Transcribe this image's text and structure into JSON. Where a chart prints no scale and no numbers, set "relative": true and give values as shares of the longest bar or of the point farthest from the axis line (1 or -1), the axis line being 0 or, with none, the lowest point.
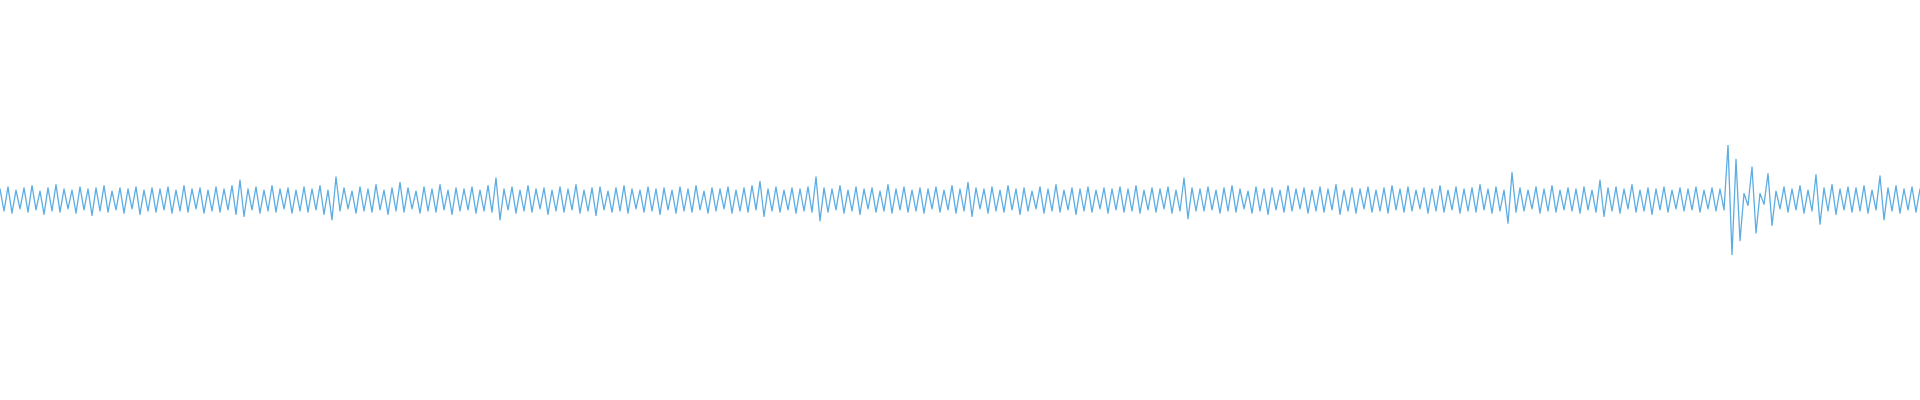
{
  "chart_data": {
    "type": "line",
    "relative": true,
    "color": "#5dade2",
    "marker": "none",
    "categories": [
      null,
      null,
      null,
      null,
      null,
      null,
      null,
      null,
      null,
      null,
      null,
      null,
      null,
      null,
      null,
      null,
      null,
      null,
      null,
      null,
      null,
      null,
      null,
      null,
      null,
      null,
      null,
      null,
      null,
      null,
      null,
      null,
      null,
      null,
      null,
      null,
      null,
      null,
      null,
      null,
      null,
      null,
      null,
      null,
      null,
      null,
      null,
      null,
      null,
      null,
      null,
      null,
      null,
      null,
      null,
      null,
      null,
      null,
      null,
      null,
      null,
      null,
      null,
      null,
      null,
      null,
      null,
      null,
      null,
      null,
      null,
      null,
      null,
      null,
      null,
      null,
      null,
      null,
      null,
      null,
      null,
      null,
      null,
      null,
      null,
      null,
      null,
      null,
      null,
      null,
      null,
      null,
      null,
      null,
      null,
      null,
      null,
      null,
      null,
      null,
      null,
      null,
      null,
      null,
      null,
      null,
      null,
      null,
      null,
      null,
      null,
      null,
      null,
      null,
      null,
      null,
      null,
      null,
      null,
      null,
      null,
      null,
      null,
      null,
      null,
      null,
      null,
      null,
      null,
      null,
      null,
      null,
      null,
      null,
      null,
      null,
      null,
      null,
      null,
      null,
      null,
      null,
      null,
      null,
      null,
      null,
      null,
      null,
      null,
      null,
      null,
      null,
      null,
      null,
      null,
      null,
      null,
      null,
      null,
      null,
      null,
      null,
      null,
      null,
      null,
      null,
      null,
      null,
      null,
      null,
      null,
      null,
      null,
      null,
      null,
      null,
      null,
      null,
      null,
      null,
      null,
      null,
      null,
      null,
      null,
      null,
      null,
      null,
      null,
      null,
      null,
      null,
      null,
      null,
      null,
      null,
      null,
      null,
      null,
      null,
      null,
      null,
      null,
      null,
      null,
      null,
      null,
      null,
      null,
      null,
      null,
      null,
      null,
      null,
      null,
      null,
      null,
      null,
      null,
      null,
      null,
      null,
      null,
      null,
      null,
      null,
      null,
      null,
      null,
      null,
      null,
      null,
      null,
      null,
      null,
      null,
      null,
      null,
      null,
      null,
      null,
      null,
      null,
      null,
      null,
      null,
      null,
      null,
      null,
      null,
      null,
      null,
      null,
      null,
      null,
      null,
      null,
      null,
      null,
      null,
      null,
      null,
      null,
      null,
      null,
      null,
      null,
      null,
      null,
      null,
      null,
      null,
      null,
      null,
      null,
      null,
      null,
      null,
      null,
      null,
      null,
      null,
      null,
      null,
      null,
      null,
      null,
      null,
      null,
      null,
      null,
      null,
      null,
      null,
      null,
      null,
      null,
      null,
      null,
      null,
      null,
      null,
      null,
      null,
      null,
      null,
      null,
      null,
      null,
      null,
      null,
      null,
      null,
      null,
      null,
      null,
      null,
      null,
      null,
      null,
      null,
      null,
      null,
      null,
      null,
      null,
      null,
      null,
      null,
      null,
      null,
      null,
      null,
      null,
      null,
      null,
      null,
      null,
      null,
      null,
      null,
      null,
      null,
      null,
      null,
      null,
      null,
      null,
      null,
      null,
      null,
      null,
      null,
      null,
      null,
      null,
      null,
      null,
      null,
      null,
      null,
      null,
      null,
      null,
      null,
      null,
      null,
      null,
      null,
      null,
      null,
      null,
      null,
      null,
      null,
      null,
      null,
      null,
      null,
      null,
      null,
      null,
      null,
      null,
      null,
      null,
      null,
      null,
      null,
      null,
      null,
      null,
      null,
      null,
      null,
      null,
      null,
      null,
      null,
      null,
      null,
      null,
      null,
      null,
      null,
      null,
      null,
      null,
      null,
      null,
      null,
      null,
      null,
      null,
      null,
      null,
      null,
      null,
      null,
      null,
      null,
      null,
      null,
      null,
      null,
      null,
      null,
      null,
      null,
      null,
      null,
      null,
      null,
      null,
      null,
      null,
      null,
      null,
      null,
      null,
      null,
      null,
      null,
      null,
      null,
      null,
      null,
      null,
      null,
      null,
      null,
      null,
      null,
      null,
      null,
      null,
      null,
      null,
      null,
      null,
      null,
      null,
      null,
      null,
      null,
      null,
      null,
      null,
      null,
      null,
      null,
      null,
      null,
      null,
      null,
      null,
      null,
      null,
      null,
      null,
      null
    ],
    "values": [
      0.6,
      0.4,
      0.62,
      0.38,
      0.59,
      0.42,
      0.61,
      0.39,
      0.63,
      0.41,
      0.58,
      0.37,
      0.61,
      0.4,
      0.64,
      0.39,
      0.6,
      0.42,
      0.59,
      0.38,
      0.62,
      0.41,
      0.6,
      0.36,
      0.61,
      0.4,
      0.63,
      0.39,
      0.58,
      0.41,
      0.61,
      0.38,
      0.6,
      0.42,
      0.62,
      0.37,
      0.59,
      0.4,
      0.61,
      0.39,
      0.6,
      0.41,
      0.62,
      0.38,
      0.59,
      0.4,
      0.63,
      0.39,
      0.6,
      0.42,
      0.61,
      0.38,
      0.59,
      0.4,
      0.62,
      0.39,
      0.6,
      0.41,
      0.63,
      0.37,
      0.68,
      0.35,
      0.6,
      0.41,
      0.62,
      0.38,
      0.59,
      0.4,
      0.63,
      0.39,
      0.6,
      0.42,
      0.61,
      0.38,
      0.59,
      0.4,
      0.62,
      0.39,
      0.6,
      0.41,
      0.63,
      0.37,
      0.59,
      0.32,
      0.71,
      0.4,
      0.61,
      0.42,
      0.58,
      0.38,
      0.62,
      0.4,
      0.6,
      0.39,
      0.64,
      0.41,
      0.59,
      0.37,
      0.61,
      0.4,
      0.66,
      0.39,
      0.61,
      0.42,
      0.58,
      0.38,
      0.62,
      0.4,
      0.6,
      0.39,
      0.64,
      0.41,
      0.59,
      0.37,
      0.61,
      0.4,
      0.6,
      0.41,
      0.62,
      0.38,
      0.59,
      0.4,
      0.63,
      0.39,
      0.7,
      0.32,
      0.6,
      0.41,
      0.62,
      0.38,
      0.59,
      0.4,
      0.63,
      0.39,
      0.6,
      0.42,
      0.61,
      0.37,
      0.59,
      0.4,
      0.62,
      0.39,
      0.6,
      0.41,
      0.64,
      0.38,
      0.59,
      0.4,
      0.61,
      0.36,
      0.62,
      0.41,
      0.58,
      0.39,
      0.61,
      0.4,
      0.63,
      0.38,
      0.6,
      0.42,
      0.59,
      0.39,
      0.62,
      0.4,
      0.6,
      0.37,
      0.61,
      0.41,
      0.59,
      0.38,
      0.62,
      0.4,
      0.6,
      0.39,
      0.63,
      0.41,
      0.58,
      0.38,
      0.61,
      0.4,
      0.6,
      0.42,
      0.62,
      0.38,
      0.59,
      0.4,
      0.61,
      0.39,
      0.63,
      0.41,
      0.67,
      0.35,
      0.6,
      0.4,
      0.62,
      0.39,
      0.59,
      0.41,
      0.61,
      0.38,
      0.6,
      0.4,
      0.62,
      0.39,
      0.71,
      0.31,
      0.61,
      0.39,
      0.6,
      0.41,
      0.63,
      0.38,
      0.59,
      0.4,
      0.62,
      0.37,
      0.6,
      0.42,
      0.61,
      0.39,
      0.58,
      0.4,
      0.64,
      0.38,
      0.6,
      0.41,
      0.62,
      0.39,
      0.59,
      0.4,
      0.61,
      0.38,
      0.6,
      0.42,
      0.62,
      0.39,
      0.59,
      0.41,
      0.63,
      0.38,
      0.6,
      0.4,
      0.66,
      0.35,
      0.61,
      0.42,
      0.6,
      0.38,
      0.62,
      0.4,
      0.59,
      0.39,
      0.63,
      0.41,
      0.6,
      0.37,
      0.61,
      0.4,
      0.58,
      0.42,
      0.62,
      0.38,
      0.6,
      0.4,
      0.64,
      0.39,
      0.59,
      0.41,
      0.61,
      0.37,
      0.6,
      0.4,
      0.62,
      0.39,
      0.59,
      0.42,
      0.61,
      0.38,
      0.6,
      0.41,
      0.62,
      0.39,
      0.6,
      0.4,
      0.63,
      0.38,
      0.59,
      0.41,
      0.61,
      0.39,
      0.6,
      0.42,
      0.62,
      0.38,
      0.59,
      0.4,
      0.7,
      0.33,
      0.61,
      0.4,
      0.6,
      0.4,
      0.62,
      0.41,
      0.59,
      0.38,
      0.61,
      0.4,
      0.63,
      0.39,
      0.6,
      0.42,
      0.58,
      0.38,
      0.62,
      0.4,
      0.6,
      0.37,
      0.61,
      0.41,
      0.59,
      0.39,
      0.63,
      0.4,
      0.6,
      0.42,
      0.61,
      0.38,
      0.59,
      0.4,
      0.62,
      0.39,
      0.6,
      0.41,
      0.64,
      0.37,
      0.59,
      0.4,
      0.61,
      0.38,
      0.6,
      0.42,
      0.62,
      0.39,
      0.59,
      0.4,
      0.61,
      0.38,
      0.63,
      0.41,
      0.6,
      0.39,
      0.62,
      0.4,
      0.59,
      0.42,
      0.61,
      0.38,
      0.6,
      0.4,
      0.63,
      0.39,
      0.59,
      0.41,
      0.62,
      0.38,
      0.6,
      0.4,
      0.61,
      0.39,
      0.64,
      0.41,
      0.6,
      0.38,
      0.62,
      0.4,
      0.59,
      0.29,
      0.75,
      0.39,
      0.61,
      0.4,
      0.59,
      0.42,
      0.62,
      0.38,
      0.6,
      0.4,
      0.63,
      0.39,
      0.59,
      0.41,
      0.61,
      0.4,
      0.6,
      0.38,
      0.62,
      0.41,
      0.59,
      0.39,
      0.68,
      0.35,
      0.61,
      0.4,
      0.62,
      0.38,
      0.6,
      0.42,
      0.64,
      0.39,
      0.59,
      0.4,
      0.61,
      0.37,
      0.6,
      0.41,
      0.62,
      0.39,
      0.59,
      0.42,
      0.61,
      0.4,
      0.6,
      0.41,
      0.62,
      0.39,
      0.59,
      0.42,
      0.61,
      0.4,
      0.6,
      0.41,
      1.0,
      0.0,
      0.87,
      0.13,
      0.56,
      0.45,
      0.8,
      0.2,
      0.56,
      0.46,
      0.74,
      0.27,
      0.58,
      0.42,
      0.62,
      0.39,
      0.6,
      0.41,
      0.63,
      0.38,
      0.59,
      0.4,
      0.73,
      0.28,
      0.61,
      0.4,
      0.64,
      0.37,
      0.6,
      0.41,
      0.62,
      0.39,
      0.61,
      0.4,
      0.63,
      0.38,
      0.59,
      0.41,
      0.72,
      0.32,
      0.61,
      0.4,
      0.63,
      0.38,
      0.6,
      0.41,
      0.62,
      0.39,
      0.6
    ]
  }
}
